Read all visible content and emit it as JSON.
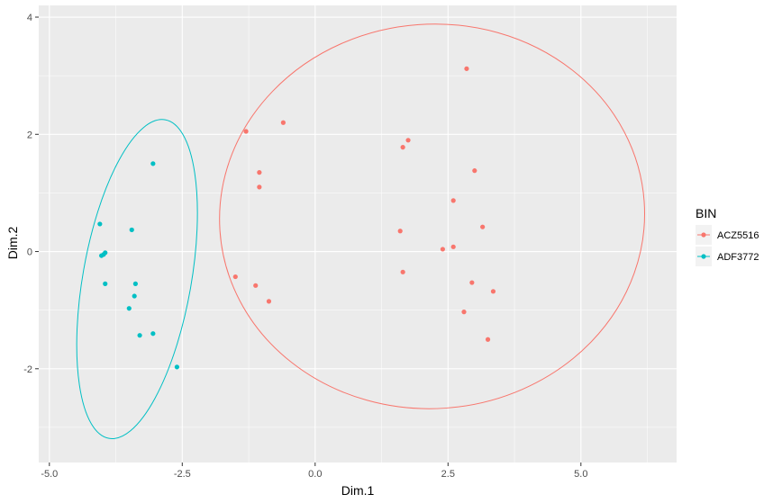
{
  "chart_data": {
    "type": "scatter",
    "xlabel": "Dim.1",
    "ylabel": "Dim.2",
    "xlim": [
      -5.2,
      6.8
    ],
    "ylim": [
      -3.6,
      4.2
    ],
    "x_ticks": [
      -5.0,
      -2.5,
      0.0,
      2.5,
      5.0
    ],
    "x_tick_labels": [
      "-5.0",
      "-2.5",
      "0.0",
      "2.5",
      "5.0"
    ],
    "y_ticks": [
      -2,
      0,
      2,
      4
    ],
    "y_tick_labels": [
      "-2",
      "0",
      "2",
      "4"
    ],
    "grid": true,
    "legend": {
      "title": "BIN",
      "placement": "right"
    },
    "series": [
      {
        "name": "ACZ5516",
        "color": "#F8766D",
        "points": [
          {
            "x": 2.85,
            "y": 3.12
          },
          {
            "x": -0.6,
            "y": 2.2
          },
          {
            "x": -1.3,
            "y": 2.05
          },
          {
            "x": 1.75,
            "y": 1.9
          },
          {
            "x": 1.65,
            "y": 1.78
          },
          {
            "x": 3.0,
            "y": 1.38
          },
          {
            "x": -1.05,
            "y": 1.35
          },
          {
            "x": -1.05,
            "y": 1.1
          },
          {
            "x": 2.6,
            "y": 0.87
          },
          {
            "x": 3.15,
            "y": 0.42
          },
          {
            "x": 1.6,
            "y": 0.35
          },
          {
            "x": 2.6,
            "y": 0.08
          },
          {
            "x": 2.4,
            "y": 0.04
          },
          {
            "x": 1.65,
            "y": -0.35
          },
          {
            "x": -1.5,
            "y": -0.43
          },
          {
            "x": -1.12,
            "y": -0.58
          },
          {
            "x": 2.95,
            "y": -0.53
          },
          {
            "x": 3.35,
            "y": -0.68
          },
          {
            "x": -0.87,
            "y": -0.85
          },
          {
            "x": 2.8,
            "y": -1.03
          },
          {
            "x": 3.25,
            "y": -1.5
          }
        ],
        "ellipse": {
          "center": [
            2.2,
            0.6
          ],
          "rx": 4.0,
          "ry": 3.28,
          "angle": -4
        }
      },
      {
        "name": "ADF3772",
        "color": "#00BFC4",
        "points": [
          {
            "x": -3.05,
            "y": 1.5
          },
          {
            "x": -4.05,
            "y": 0.47
          },
          {
            "x": -3.45,
            "y": 0.37
          },
          {
            "x": -3.95,
            "y": -0.02
          },
          {
            "x": -3.98,
            "y": -0.05
          },
          {
            "x": -4.02,
            "y": -0.07
          },
          {
            "x": -3.95,
            "y": -0.55
          },
          {
            "x": -3.38,
            "y": -0.55
          },
          {
            "x": -3.4,
            "y": -0.76
          },
          {
            "x": -3.5,
            "y": -0.97
          },
          {
            "x": -3.3,
            "y": -1.43
          },
          {
            "x": -3.05,
            "y": -1.4
          },
          {
            "x": -2.6,
            "y": -1.97
          }
        ],
        "ellipse": {
          "center": [
            -3.35,
            -0.47
          ],
          "rx": 1.02,
          "ry": 2.76,
          "angle": 10
        }
      }
    ]
  }
}
